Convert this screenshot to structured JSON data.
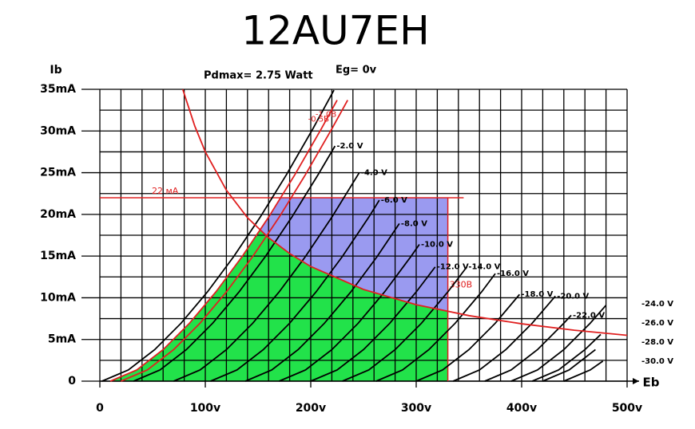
{
  "chart_data": {
    "type": "line",
    "title": "12AU7EH",
    "y_label": "Ib",
    "x_label": "Eb",
    "xlim": [
      0,
      500
    ],
    "ylim": [
      0,
      35
    ],
    "xticks": [
      0,
      {
        "value": 100,
        "label": "100v"
      },
      {
        "value": 200,
        "label": "200v"
      },
      {
        "value": 300,
        "label": "300v"
      },
      {
        "value": 400,
        "label": "400v"
      },
      {
        "value": 500,
        "label": "500v"
      }
    ],
    "yticks": [
      0,
      {
        "value": 5,
        "label": "5mA"
      },
      {
        "value": 10,
        "label": "10mA"
      },
      {
        "value": 15,
        "label": "15mA"
      },
      {
        "value": 20,
        "label": "20mA"
      },
      {
        "value": 25,
        "label": "25mA"
      },
      {
        "value": 30,
        "label": "30mA"
      },
      {
        "value": 35,
        "label": "35mA"
      }
    ],
    "x_grid": [
      0,
      20,
      40,
      60,
      80,
      100,
      120,
      140,
      160,
      180,
      200,
      220,
      240,
      260,
      280,
      300,
      320,
      340,
      360,
      380,
      400,
      420,
      440,
      460,
      480,
      500
    ],
    "y_grid": [
      0,
      2.5,
      5,
      7.5,
      10,
      12.5,
      15,
      17.5,
      20,
      22.5,
      25,
      27.5,
      30,
      32.5,
      35
    ],
    "current_limit": {
      "value": 22,
      "label": "22 мА",
      "color": "#e02020"
    },
    "voltage_limit": {
      "value": 330,
      "label": "330В",
      "color": "#e02020"
    },
    "area_below_color": "#22e24a",
    "area_above_color": "#9a9af0",
    "series": [
      {
        "name": "Eg= 0v",
        "color": "#000000",
        "x": [
          2,
          27,
          52,
          77,
          102,
          127,
          152,
          177,
          202,
          222
        ],
        "values": [
          0,
          1.34,
          3.78,
          6.95,
          10.7,
          14.95,
          19.66,
          24.77,
          30.26,
          34.9
        ]
      },
      {
        "name": "-0,5B",
        "color": "#e02020",
        "x": [
          10,
          35,
          60,
          85,
          110,
          135,
          160,
          185,
          210,
          225
        ],
        "values": [
          0,
          1.34,
          3.78,
          6.95,
          10.7,
          14.95,
          19.66,
          24.77,
          30.26,
          33.7
        ]
      },
      {
        "name": "-1,0B",
        "color": "#e02020",
        "x": [
          20,
          45,
          70,
          95,
          120,
          145,
          170,
          195,
          220,
          235
        ],
        "values": [
          0,
          1.34,
          3.78,
          6.95,
          10.7,
          14.95,
          19.66,
          24.77,
          30.26,
          33.7
        ]
      },
      {
        "name": "-2.0 V",
        "color": "#000000",
        "x": [
          32,
          57,
          82,
          107,
          132,
          157,
          182,
          207,
          223
        ],
        "values": [
          0,
          1.34,
          3.78,
          6.95,
          10.7,
          14.95,
          19.66,
          24.77,
          28.2
        ]
      },
      {
        "name": "-4.0 V",
        "color": "#000000",
        "x": [
          70,
          95,
          120,
          145,
          170,
          195,
          220,
          246
        ],
        "values": [
          0,
          1.34,
          3.78,
          6.95,
          10.7,
          14.95,
          19.66,
          25.0
        ]
      },
      {
        "name": "-6.0 V",
        "color": "#000000",
        "x": [
          105,
          130,
          155,
          180,
          205,
          230,
          255,
          265
        ],
        "values": [
          0,
          1.34,
          3.78,
          6.95,
          10.7,
          14.95,
          19.66,
          21.7
        ]
      },
      {
        "name": "-8.0 V",
        "color": "#000000",
        "x": [
          138,
          163,
          188,
          213,
          238,
          263,
          284
        ],
        "values": [
          0,
          1.34,
          3.78,
          6.95,
          10.7,
          14.95,
          18.9
        ]
      },
      {
        "name": "-10.0 V",
        "color": "#000000",
        "x": [
          170,
          195,
          220,
          245,
          270,
          295,
          303
        ],
        "values": [
          0,
          1.34,
          3.78,
          6.95,
          10.7,
          14.95,
          16.4
        ]
      },
      {
        "name": "-12.0 V",
        "color": "#000000",
        "x": [
          200,
          225,
          250,
          275,
          300,
          318
        ],
        "values": [
          0,
          1.34,
          3.78,
          6.95,
          10.7,
          13.7
        ]
      },
      {
        "name": "-14.0 V",
        "color": "#000000",
        "x": [
          230,
          255,
          280,
          305,
          330,
          348
        ],
        "values": [
          0,
          1.34,
          3.78,
          6.95,
          10.7,
          13.7
        ]
      },
      {
        "name": "-16.0 V",
        "color": "#000000",
        "x": [
          262,
          287,
          312,
          337,
          362,
          375
        ],
        "values": [
          0,
          1.34,
          3.78,
          6.95,
          10.7,
          12.9
        ]
      },
      {
        "name": "-18.0 V",
        "color": "#000000",
        "x": [
          300,
          325,
          350,
          375,
          398
        ],
        "values": [
          0,
          1.34,
          3.78,
          6.95,
          10.4
        ]
      },
      {
        "name": "-20.0 V",
        "color": "#000000",
        "x": [
          335,
          360,
          385,
          410,
          432
        ],
        "values": [
          0,
          1.34,
          3.78,
          6.95,
          10.2
        ]
      },
      {
        "name": "-22.0 V",
        "color": "#000000",
        "x": [
          365,
          390,
          415,
          440,
          447
        ],
        "values": [
          0,
          1.34,
          3.78,
          6.95,
          7.9
        ]
      },
      {
        "name": "-24.0 V",
        "color": "#000000",
        "x": [
          390,
          415,
          440,
          465,
          480
        ],
        "values": [
          0,
          1.34,
          3.78,
          6.95,
          9.1
        ]
      },
      {
        "name": "-26.0 V",
        "color": "#000000",
        "x": [
          410,
          435,
          460,
          475
        ],
        "values": [
          0,
          1.34,
          3.78,
          5.6
        ]
      },
      {
        "name": "-28.0 V",
        "color": "#000000",
        "x": [
          420,
          445,
          470
        ],
        "values": [
          0,
          1.34,
          3.78
        ]
      },
      {
        "name": "-30.0 V",
        "color": "#000000",
        "x": [
          440,
          465,
          477
        ],
        "values": [
          0,
          1.34,
          2.4
        ]
      },
      {
        "name": "Pdmax= 2.75 Watt",
        "color": "#e02020",
        "x": [
          78.6,
          90,
          100,
          120,
          140,
          160,
          180,
          200,
          250,
          300,
          350,
          400,
          450,
          500
        ],
        "values": [
          35,
          30.6,
          27.5,
          22.9,
          19.6,
          17.2,
          15.3,
          13.75,
          11,
          9.17,
          7.86,
          6.88,
          6.11,
          5.5
        ]
      }
    ]
  }
}
